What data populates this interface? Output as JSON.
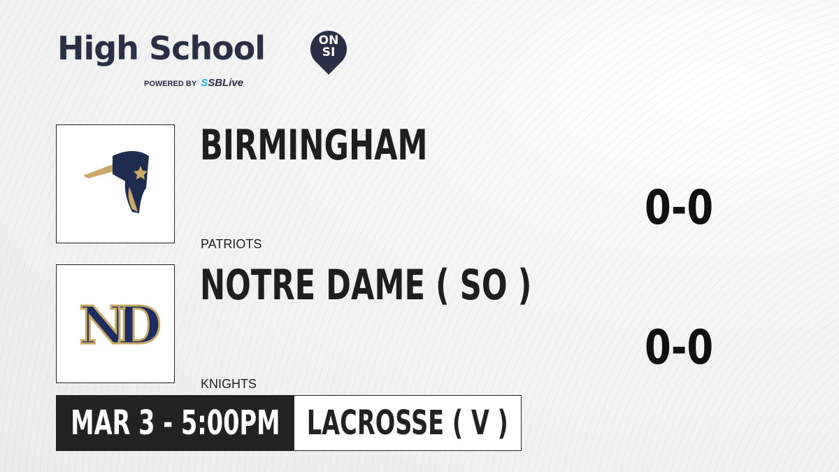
{
  "brand": {
    "title": "High School",
    "badge_top": "ON",
    "badge_bottom": "SI",
    "powered_by": "POWERED BY",
    "partner_prefix": "S",
    "partner": "SBLive"
  },
  "teams": [
    {
      "name": "BIRMINGHAM",
      "mascot": "PATRIOTS",
      "score": "0-0",
      "logo": "patriot-head-logo"
    },
    {
      "name": "NOTRE DAME ( SO )",
      "mascot": "KNIGHTS",
      "score": "0-0",
      "logo": "nd-monogram-logo"
    }
  ],
  "game": {
    "datetime": "MAR 3 - 5:00PM",
    "sport": "LACROSSE ( V )"
  },
  "colors": {
    "navy": "#2b2f45",
    "accent": "#1fb1e6",
    "dark": "#222222",
    "gold": "#c9a968"
  }
}
